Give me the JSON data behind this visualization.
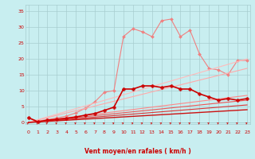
{
  "bg_color": "#c8eef0",
  "grid_color": "#a8cdd0",
  "xlim": [
    -0.3,
    23.3
  ],
  "ylim": [
    -0.5,
    37
  ],
  "x_ticks": [
    0,
    1,
    2,
    3,
    4,
    5,
    6,
    7,
    8,
    9,
    10,
    11,
    12,
    13,
    14,
    15,
    16,
    17,
    18,
    19,
    20,
    21,
    22,
    23
  ],
  "y_ticks": [
    0,
    5,
    10,
    15,
    20,
    25,
    30,
    35
  ],
  "xlabel": "Vent moyen/en rafales ( km/h )",
  "lines": [
    {
      "color": "#f08080",
      "lw": 0.8,
      "marker": "D",
      "ms": 2.0,
      "x": [
        0,
        1,
        2,
        3,
        4,
        5,
        6,
        7,
        8,
        9,
        10,
        11,
        12,
        13,
        14,
        15,
        16,
        17,
        18,
        19,
        20,
        21,
        22,
        23
      ],
      "y": [
        1.5,
        0.4,
        0.9,
        1.4,
        2.0,
        3.0,
        4.5,
        6.5,
        9.5,
        10.0,
        27.0,
        29.5,
        28.5,
        27.0,
        32.0,
        32.5,
        27.0,
        29.0,
        21.5,
        17.0,
        16.5,
        15.0,
        19.5,
        19.5
      ]
    },
    {
      "color": "#ffbbbb",
      "lw": 0.8,
      "marker": null,
      "ms": 0,
      "x": [
        0,
        23
      ],
      "y": [
        0.0,
        20.0
      ]
    },
    {
      "color": "#ffaaaa",
      "lw": 0.8,
      "marker": null,
      "ms": 0,
      "x": [
        0,
        23
      ],
      "y": [
        0.0,
        17.0
      ]
    },
    {
      "color": "#ff8888",
      "lw": 0.8,
      "marker": null,
      "ms": 0,
      "x": [
        0,
        23
      ],
      "y": [
        0.0,
        8.5
      ]
    },
    {
      "color": "#ee5555",
      "lw": 0.8,
      "marker": null,
      "ms": 0,
      "x": [
        0,
        23
      ],
      "y": [
        0.0,
        7.0
      ]
    },
    {
      "color": "#dd3333",
      "lw": 0.8,
      "marker": null,
      "ms": 0,
      "x": [
        0,
        23
      ],
      "y": [
        0.0,
        5.5
      ]
    },
    {
      "color": "#cc1111",
      "lw": 1.0,
      "marker": null,
      "ms": 0,
      "x": [
        0,
        23
      ],
      "y": [
        0.0,
        4.0
      ]
    },
    {
      "color": "#cc0000",
      "lw": 1.2,
      "marker": "P",
      "ms": 3.0,
      "x": [
        0,
        1,
        2,
        3,
        4,
        5,
        6,
        7,
        8,
        9,
        10,
        11,
        12,
        13,
        14,
        15,
        16,
        17,
        18,
        19,
        20,
        21,
        22,
        23
      ],
      "y": [
        1.5,
        0.2,
        0.7,
        1.0,
        1.3,
        1.7,
        2.3,
        2.8,
        3.8,
        4.8,
        10.5,
        10.5,
        11.5,
        11.5,
        11.0,
        11.5,
        10.5,
        10.5,
        9.0,
        8.0,
        7.0,
        7.5,
        7.0,
        7.5
      ]
    }
  ],
  "tick_color": "#cc0000",
  "label_color": "#cc0000",
  "tick_fontsize": 4.5,
  "label_fontsize": 5.5,
  "arrow_color": "#cc0000"
}
